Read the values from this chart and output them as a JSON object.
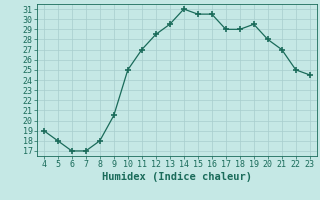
{
  "x": [
    4,
    5,
    6,
    7,
    8,
    9,
    10,
    11,
    12,
    13,
    14,
    15,
    16,
    17,
    18,
    19,
    20,
    21,
    22,
    23
  ],
  "y": [
    19,
    18,
    17,
    17,
    18,
    20.5,
    25,
    27,
    28.5,
    29.5,
    31,
    30.5,
    30.5,
    29,
    29,
    29.5,
    28,
    27,
    25,
    24.5
  ],
  "line_color": "#1a6b5a",
  "marker": "+",
  "marker_size": 4,
  "bg_color": "#c5e8e5",
  "grid_color": "#a8cece",
  "xlabel": "Humidex (Indice chaleur)",
  "xlim": [
    3.5,
    23.5
  ],
  "ylim": [
    16.5,
    31.5
  ],
  "yticks": [
    17,
    18,
    19,
    20,
    21,
    22,
    23,
    24,
    25,
    26,
    27,
    28,
    29,
    30,
    31
  ],
  "xticks": [
    4,
    5,
    6,
    7,
    8,
    9,
    10,
    11,
    12,
    13,
    14,
    15,
    16,
    17,
    18,
    19,
    20,
    21,
    22,
    23
  ],
  "tick_color": "#1a6b5a",
  "label_color": "#1a6b5a",
  "xlabel_fontsize": 7.5,
  "tick_fontsize": 6
}
